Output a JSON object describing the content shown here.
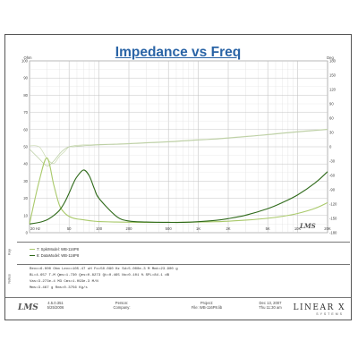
{
  "title": "Impedance vs Freq",
  "left_unit": "Ohm",
  "right_unit": "Deg",
  "y_left_ticks": [
    "100",
    "90",
    "80",
    "70",
    "60",
    "50",
    "40",
    "30",
    "20",
    "10",
    "0"
  ],
  "y_right_ticks": [
    "180",
    "150",
    "120",
    "90",
    "60",
    "30",
    "0",
    "-30",
    "-60",
    "-90",
    "-120",
    "-150",
    "-180"
  ],
  "x_tick_labels": [
    {
      "f": 20,
      "label": "20 Hz"
    },
    {
      "f": 50,
      "label": "50"
    },
    {
      "f": 100,
      "label": "100"
    },
    {
      "f": 200,
      "label": "200"
    },
    {
      "f": 500,
      "label": "500"
    },
    {
      "f": 1000,
      "label": "1K"
    },
    {
      "f": 2000,
      "label": "2K"
    },
    {
      "f": 5000,
      "label": "5K"
    },
    {
      "f": 10000,
      "label": "10K"
    },
    {
      "f": 20000,
      "label": "20K"
    }
  ],
  "side_labels": {
    "legend": "Key",
    "notes": "Notes"
  },
  "legend": [
    {
      "label": "7: SpkrModel: WB-116P8",
      "color": "#a9c96a"
    },
    {
      "label": "8: DataModel: WB-116P8",
      "color": "#2f6a1a"
    }
  ],
  "notes_lines": [
    "Revc=6.000 Ohm  Levc=105.47 uH  Fo=50.090 Hz  Sd=5.000e-3 M  Mmt=23.900 g",
    "BL=4.657 T-M  Qms=1.730  Qes=0.8273  Qt=0.465  No=0.101 %  SPL=84.1 dB",
    "Vas=3.273e-4 M3  Cms=1.093e-3 M/N",
    "Mms=3.467 g  Rms=0.3756 Kg/s"
  ],
  "footer": {
    "version": [
      "4.5.0.351",
      "5/25/2006"
    ],
    "person": [
      "Person:",
      "Company:"
    ],
    "project": [
      "Project:",
      "File: WB-116P8.lib"
    ],
    "date": [
      "Dec 13, 2007",
      "Thu 11:30 am"
    ],
    "logo": "LMS",
    "brand": "LINEAR X",
    "brand_sub": "SYSTEMS"
  },
  "watermark": "LMS",
  "chart_data": {
    "type": "line",
    "title": "Impedance vs Freq",
    "x_scale": "log",
    "x_range_hz": [
      20,
      20000
    ],
    "y_left_range": [
      0,
      100
    ],
    "y_left_unit": "Ohm",
    "y_right_range": [
      -180,
      180
    ],
    "y_right_unit": "Deg",
    "grid": true,
    "x": [
      20,
      25,
      30,
      35,
      40,
      45,
      50,
      55,
      60,
      70,
      80,
      90,
      100,
      150,
      200,
      300,
      500,
      700,
      1000,
      1500,
      2000,
      3000,
      5000,
      7000,
      10000,
      15000,
      20000
    ],
    "series": [
      {
        "name": "7: SpkrModel: WB-116P8",
        "axis": "left",
        "color": "#a9c96a",
        "values": [
          5.2,
          30.0,
          43.5,
          28.0,
          16.0,
          11.5,
          9.5,
          8.5,
          8.0,
          7.5,
          7.0,
          6.7,
          6.5,
          6.2,
          6.1,
          6.0,
          6.0,
          6.1,
          6.2,
          6.4,
          6.7,
          7.3,
          8.4,
          9.5,
          11.2,
          14.2,
          17.5
        ]
      },
      {
        "name": "8: DataModel: WB-116P8",
        "axis": "left",
        "color": "#2f6a1a",
        "values": [
          5.1,
          6.0,
          7.5,
          10.0,
          13.0,
          17.5,
          23.0,
          28.5,
          32.5,
          36.5,
          33.0,
          25.5,
          20.0,
          9.5,
          6.8,
          6.2,
          6.0,
          6.0,
          6.4,
          7.2,
          8.2,
          10.2,
          14.0,
          17.5,
          22.0,
          29.0,
          35.5
        ]
      },
      {
        "name": "",
        "axis": "right",
        "color": "#c9d9b0",
        "values": [
          2,
          0,
          -25,
          -35,
          -20,
          -10,
          0,
          2,
          3,
          4,
          4,
          4.5,
          5,
          6,
          7,
          9,
          11,
          13,
          15,
          17,
          19,
          22,
          26,
          29,
          32,
          35,
          37
        ]
      },
      {
        "name": "",
        "axis": "right",
        "color": "#b7cba0",
        "values": [
          -5,
          -25,
          -40,
          -30,
          -15,
          -5,
          0,
          0,
          1,
          2,
          3,
          3.5,
          4,
          5,
          6,
          8,
          10,
          12,
          14,
          16,
          18,
          21,
          25,
          28,
          31,
          34,
          36
        ]
      }
    ]
  }
}
